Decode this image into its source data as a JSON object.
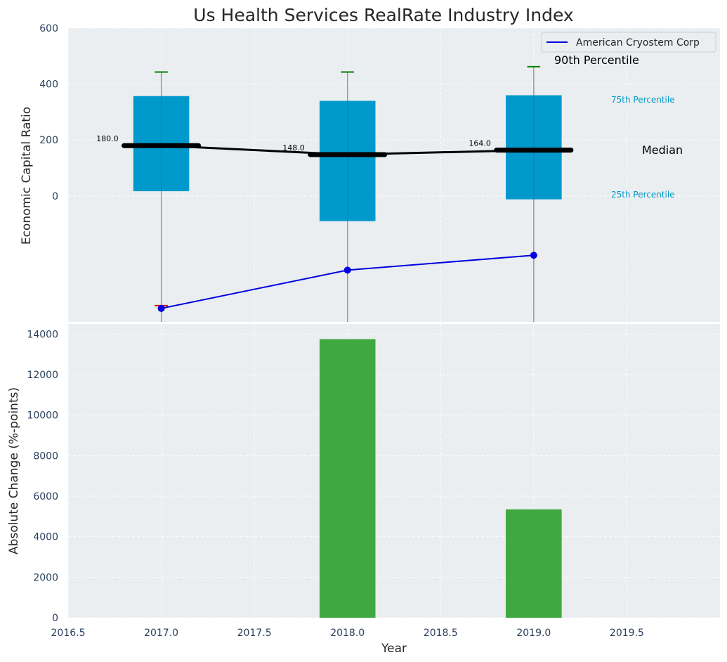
{
  "chart_data": [
    {
      "type": "box",
      "title": "Us Health Services RealRate Industry Index",
      "xlabel": "",
      "ylabel": "Economic Capital Ratio",
      "ylim": [
        -450,
        600
      ],
      "xlim": [
        2016.5,
        2020.0
      ],
      "grid": true,
      "legend": {
        "position": "top-right",
        "entries": [
          "American Cryostem Corp"
        ]
      },
      "yticks": [
        "600",
        "400",
        "200",
        "0"
      ],
      "boxes": [
        {
          "year": 2017,
          "p25": 17,
          "p75": 357,
          "median": 180,
          "median_label": "180.0",
          "p90": 443,
          "whisker_low": -450
        },
        {
          "year": 2018,
          "p25": -90,
          "p75": 340,
          "median": 148,
          "median_label": "148.0",
          "p90": 443,
          "whisker_low": -450
        },
        {
          "year": 2019,
          "p25": -12,
          "p75": 360,
          "median": 164,
          "median_label": "164.0",
          "p90": 462,
          "whisker_low": -450
        }
      ],
      "series": [
        {
          "name": "American Cryostem Corp",
          "x": [
            2017,
            2018,
            2019
          ],
          "y": [
            -402,
            -265,
            -212
          ]
        }
      ],
      "p10_marker": {
        "year": 2017,
        "value": -392
      },
      "annotations": {
        "p90": "90th Percentile",
        "p75": "75th Percentile",
        "median": "Median",
        "p25": "25th Percentile"
      },
      "colors": {
        "box": "#0099cc",
        "median": "#000000",
        "series": "#0000e0",
        "p90": "#008000",
        "p10": "#e00000",
        "bars": "#2ca02c",
        "p75_label": "#0099cc"
      }
    },
    {
      "type": "bar",
      "title": "",
      "xlabel": "Year",
      "ylabel": "Absolute Change (%-points)",
      "ylim": [
        0,
        14500
      ],
      "xlim": [
        2016.5,
        2020.0
      ],
      "grid": true,
      "xticks": [
        "2016.5",
        "2017.0",
        "2017.5",
        "2018.0",
        "2018.5",
        "2019.0",
        "2019.5"
      ],
      "yticks": [
        "0",
        "2000",
        "4000",
        "6000",
        "8000",
        "10000",
        "12000",
        "14000"
      ],
      "bars": [
        {
          "x": 2018,
          "value": 13750
        },
        {
          "x": 2019,
          "value": 5350
        }
      ]
    }
  ]
}
